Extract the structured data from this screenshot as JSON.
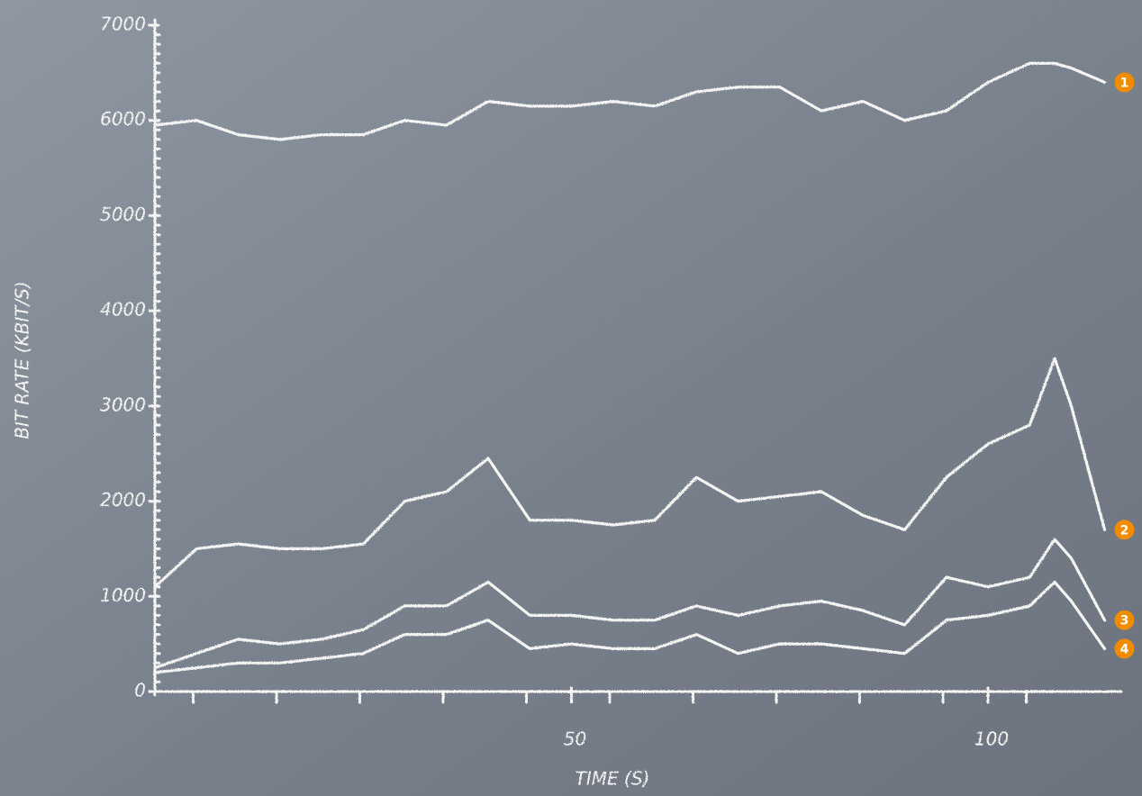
{
  "chart_data": {
    "type": "line",
    "xlabel": "TIME (S)",
    "ylabel": "BIT RATE (KBIT/S)",
    "x": [
      0,
      5,
      10,
      15,
      20,
      25,
      30,
      35,
      40,
      45,
      50,
      55,
      60,
      65,
      70,
      75,
      80,
      85,
      90,
      95,
      100,
      105,
      108,
      110,
      114
    ],
    "series": [
      {
        "name": "1",
        "color": "#f4f4f2",
        "values": [
          5950,
          6000,
          5850,
          5800,
          5850,
          5850,
          6000,
          5950,
          6200,
          6150,
          6150,
          6200,
          6150,
          6300,
          6350,
          6350,
          6100,
          6200,
          6000,
          6100,
          6400,
          6600,
          6600,
          6550,
          6400
        ]
      },
      {
        "name": "2",
        "color": "#f4f4f2",
        "values": [
          1100,
          1500,
          1550,
          1500,
          1500,
          1550,
          2000,
          2100,
          2450,
          1800,
          1800,
          1750,
          1800,
          2250,
          2000,
          2050,
          2100,
          1850,
          1700,
          2250,
          2600,
          2800,
          3500,
          3000,
          1700
        ]
      },
      {
        "name": "3",
        "color": "#f4f4f2",
        "values": [
          250,
          400,
          550,
          500,
          550,
          650,
          900,
          900,
          1150,
          800,
          800,
          750,
          750,
          900,
          800,
          900,
          950,
          850,
          700,
          1200,
          1100,
          1200,
          1600,
          1400,
          750
        ]
      },
      {
        "name": "4",
        "color": "#f4f4f2",
        "values": [
          200,
          250,
          300,
          300,
          350,
          400,
          600,
          600,
          750,
          450,
          500,
          450,
          450,
          600,
          400,
          500,
          500,
          450,
          400,
          750,
          800,
          900,
          1150,
          950,
          450
        ]
      }
    ],
    "badge_color": "#f08c00",
    "xlim": [
      0,
      116
    ],
    "xticks": [
      50,
      100
    ],
    "ylim": [
      0,
      7000
    ],
    "yticks": [
      0,
      1000,
      2000,
      3000,
      4000,
      5000,
      6000,
      7000
    ]
  }
}
